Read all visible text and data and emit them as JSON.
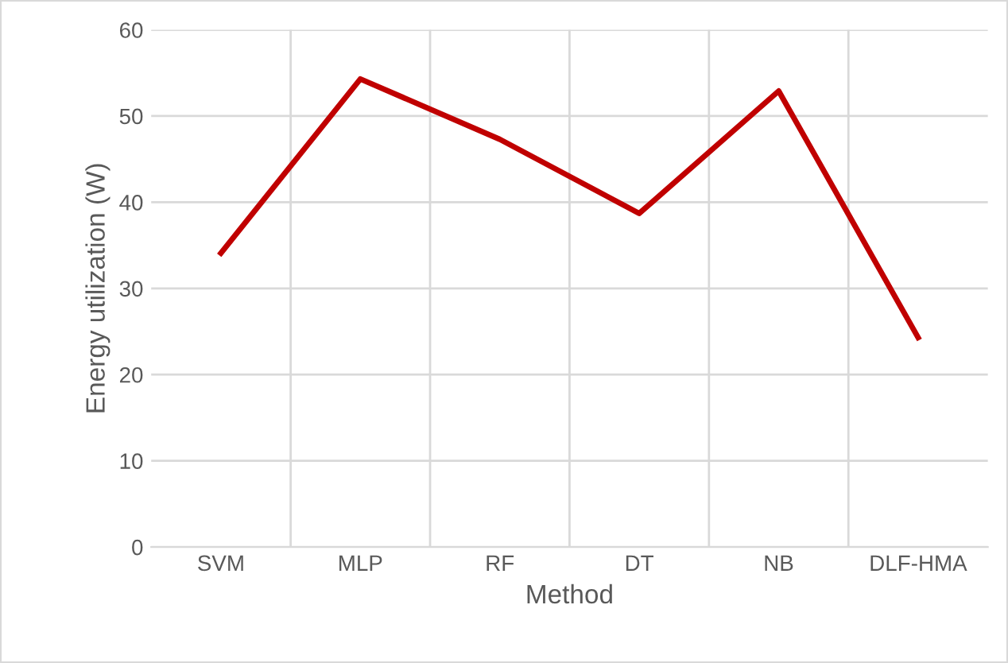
{
  "chart_data": {
    "type": "line",
    "xlabel": "Method",
    "ylabel": "Energy utilization (W)",
    "categories": [
      "SVM",
      "MLP",
      "RF",
      "DT",
      "NB",
      "DLF-HMA"
    ],
    "series": [
      {
        "color": "#c00000",
        "values": [
          34.1,
          54.3,
          47.3,
          38.7,
          52.9,
          24.3
        ]
      }
    ],
    "ylim": [
      0,
      60
    ],
    "yticks": [
      0,
      10,
      20,
      30,
      40,
      50,
      60
    ],
    "grid": true,
    "marker": "none",
    "line_style": "solid"
  }
}
